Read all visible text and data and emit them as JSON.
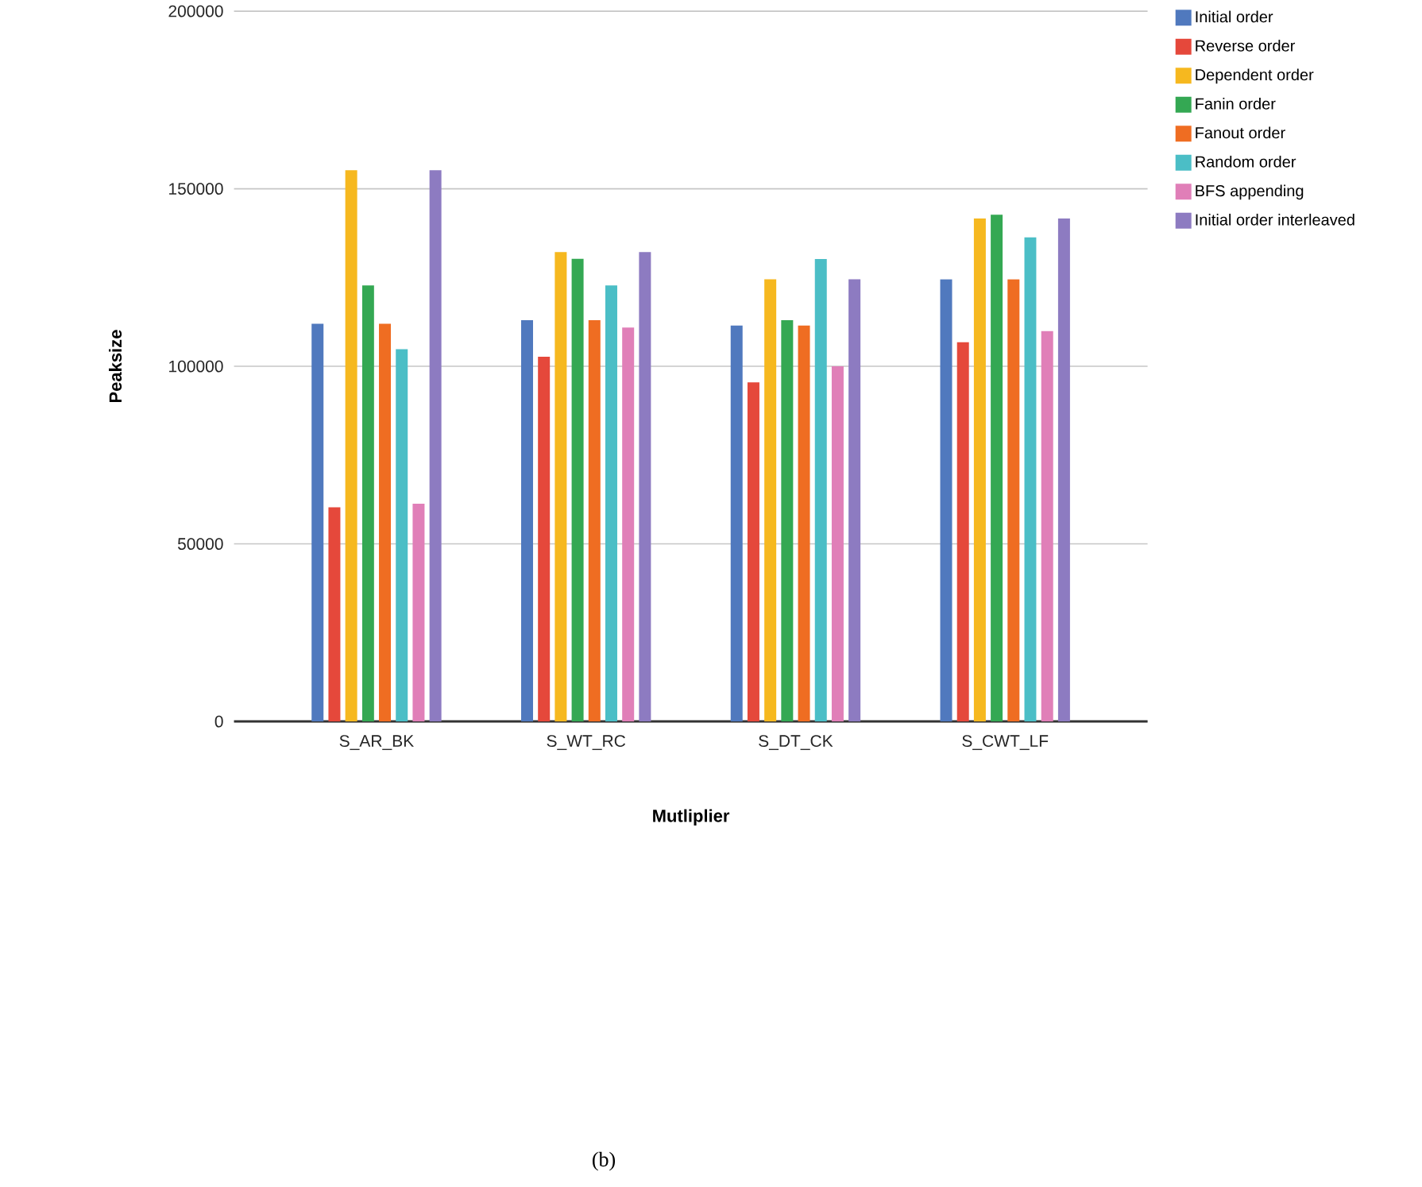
{
  "chart_data": {
    "type": "bar",
    "xlabel": "Mutliplier",
    "ylabel": "Peaksize",
    "categories": [
      "S_AR_BK",
      "S_WT_RC",
      "S_DT_CK",
      "S_CWT_LF"
    ],
    "series": [
      {
        "name": "Initial order",
        "color": "#5079be",
        "values": [
          112000,
          113000,
          111500,
          124500
        ]
      },
      {
        "name": "Reverse order",
        "color": "#e5483b",
        "values": [
          60300,
          102700,
          95500,
          106800
        ]
      },
      {
        "name": "Dependent order",
        "color": "#f6b81f",
        "values": [
          155200,
          132200,
          124500,
          141600
        ]
      },
      {
        "name": "Fanin order",
        "color": "#34a853",
        "values": [
          122800,
          130300,
          113000,
          142700
        ]
      },
      {
        "name": "Fanout order",
        "color": "#ef6d22",
        "values": [
          112000,
          113000,
          111500,
          124500
        ]
      },
      {
        "name": "Random order",
        "color": "#4bbec6",
        "values": [
          104800,
          122800,
          130200,
          136300
        ]
      },
      {
        "name": "BFS appending",
        "color": "#e07fb8",
        "values": [
          61300,
          110900,
          100000,
          109900
        ]
      },
      {
        "name": "Initial order interleaved",
        "color": "#8d7bc1",
        "values": [
          155200,
          132200,
          124500,
          141600
        ]
      }
    ],
    "ylim": [
      0,
      200000
    ],
    "yticks": [
      0,
      50000,
      100000,
      150000,
      200000
    ],
    "grid": "y",
    "legend": "right",
    "annotations": [
      "(b)"
    ]
  }
}
